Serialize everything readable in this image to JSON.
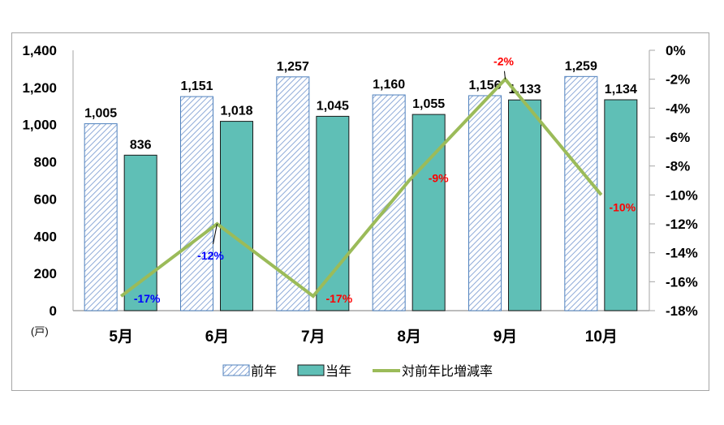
{
  "chart_data": {
    "type": "bar+line",
    "title": "",
    "categories": [
      "5月",
      "6月",
      "7月",
      "8月",
      "9月",
      "10月"
    ],
    "series": [
      {
        "name": "前年",
        "type": "bar",
        "axis": "left",
        "values": [
          1005,
          1151,
          1257,
          1160,
          1156,
          1259
        ],
        "labels": [
          "1,005",
          "1,151",
          "1,257",
          "1,160",
          "1,156",
          "1,259"
        ],
        "color": "#4f81bd",
        "pattern": "diagonal-hatch"
      },
      {
        "name": "当年",
        "type": "bar",
        "axis": "left",
        "values": [
          836,
          1018,
          1045,
          1055,
          1133,
          1134
        ],
        "labels": [
          "836",
          "1,018",
          "1,045",
          "1,055",
          "1,133",
          "1,134"
        ],
        "color": "#5fbfb6"
      },
      {
        "name": "対前年比増減率",
        "type": "line",
        "axis": "right",
        "values": [
          -17,
          -12,
          -17,
          -9,
          -2,
          -10
        ],
        "labels": [
          "-17%",
          "-12%",
          "-17%",
          "-9%",
          "-2%",
          "-10%"
        ],
        "label_colors": [
          "#0000ff",
          "#0000ff",
          "#ff0000",
          "#ff0000",
          "#ff0000",
          "#ff0000"
        ],
        "color": "#9bbb59"
      }
    ],
    "left_axis": {
      "unit": "(戸)",
      "ylim": [
        0,
        1400
      ],
      "ticks": [
        "0",
        "200",
        "400",
        "600",
        "800",
        "1,000",
        "1,200",
        "1,400"
      ]
    },
    "right_axis": {
      "ylim": [
        -18,
        0
      ],
      "ticks": [
        "0%",
        "-2%",
        "-4%",
        "-6%",
        "-8%",
        "-10%",
        "-12%",
        "-14%",
        "-16%",
        "-18%"
      ]
    },
    "xlabel": "",
    "ylabel": "(戸)",
    "grid": false,
    "legend_position": "bottom"
  },
  "legend": {
    "items": [
      {
        "label": "前年"
      },
      {
        "label": "当年"
      },
      {
        "label": "対前年比増減率"
      }
    ]
  }
}
